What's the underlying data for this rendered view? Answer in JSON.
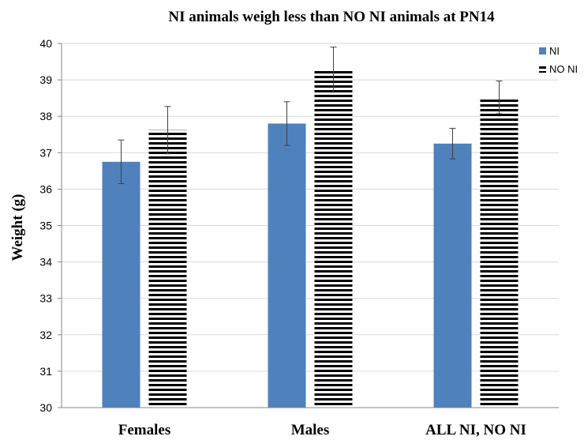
{
  "chart_data": {
    "type": "bar",
    "title": "NI animals weigh less than NO NI animals at PN14",
    "xlabel": "",
    "ylabel": "Weight (g)",
    "ylim": [
      30,
      40
    ],
    "yticks": [
      "30",
      "31",
      "32",
      "33",
      "34",
      "35",
      "36",
      "37",
      "38",
      "39",
      "40"
    ],
    "categories": [
      "Females",
      "Males",
      "ALL NI, NO NI"
    ],
    "series": [
      {
        "name": "NI",
        "values": [
          36.75,
          37.8,
          37.25
        ],
        "errors": [
          0.6,
          0.6,
          0.42
        ],
        "color": "#4f81bd",
        "pattern": "solid"
      },
      {
        "name": "NO NI",
        "values": [
          37.62,
          39.28,
          38.52
        ],
        "errors": [
          0.65,
          0.62,
          0.45
        ],
        "color": "#000000",
        "pattern": "horizontal-stripes"
      }
    ],
    "grid": true,
    "legend": "top-right"
  }
}
